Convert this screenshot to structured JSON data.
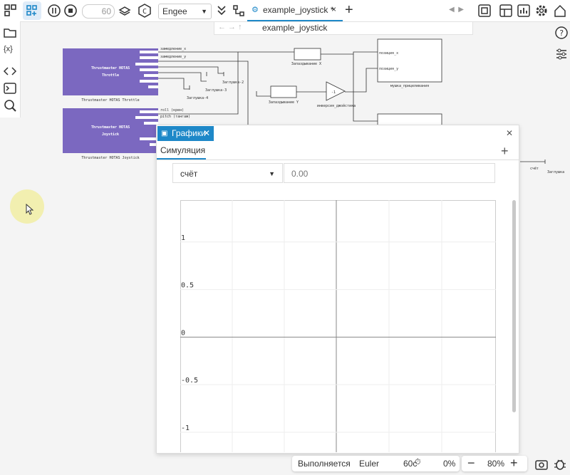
{
  "toolbar": {
    "steps": "60",
    "target": "Engee",
    "tab": "example_joystick *"
  },
  "breadcrumb": "example_joystick",
  "diagram": {
    "throttle": {
      "title_line1": "Thrustmaster HOTAS",
      "title_line2": "Throttle",
      "caption": "Thrustmaster HOTAS Throttle",
      "ports": [
        "замедление_x",
        "замедление_y"
      ]
    },
    "joystick": {
      "title_line1": "Thrustmaster HOTAS",
      "title_line2": "Joystick",
      "caption": "Thrustmaster HOTAS Joystick",
      "ports": [
        "roll (крен)",
        "pitch (тангаж)"
      ]
    },
    "stubs": [
      "Заглушка-2",
      "Заглушка-3",
      "Заглушка-4",
      "Заглушка"
    ],
    "delay_x": "Запаздывание X",
    "delay_y": "Запаздывание Y",
    "gain": {
      "value": "-1",
      "label": "инверсия_джойстика"
    },
    "sight": {
      "label": "мушка_прицеливания",
      "ports": [
        "позиция_x",
        "позиция_y"
      ]
    },
    "counter": "счёт"
  },
  "panel": {
    "tab": "Графики",
    "subtab": "Симуляция",
    "signal": "счёт",
    "value": "0.00",
    "plot": {
      "ylim": [
        -1.21,
        1.44
      ],
      "yticks": [
        1,
        0.5,
        0,
        -0.5,
        -1
      ]
    }
  },
  "status": {
    "state": "Выполняется",
    "solver": "Euler",
    "time": "60c",
    "progress": "0%",
    "zoom": "80%"
  }
}
